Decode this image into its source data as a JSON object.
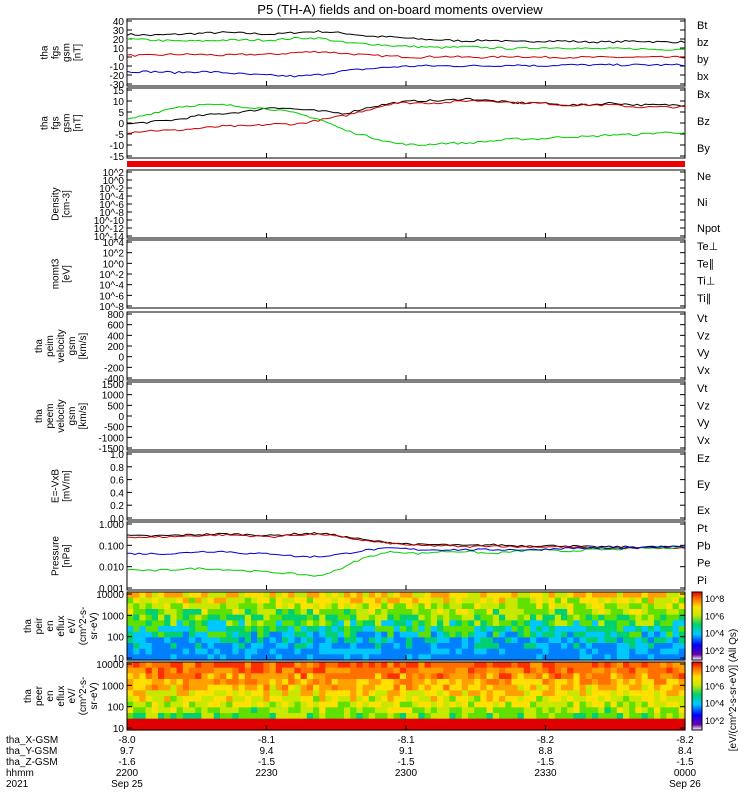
{
  "title": "P5 (TH-A) fields and on-board moments overview",
  "chart_data": [
    {
      "type": "line",
      "panel": "fgs_btotal",
      "ylabel": [
        "tha",
        "fgs",
        "gsm",
        "[nT]"
      ],
      "yticks": [
        40,
        30,
        20,
        10,
        0,
        -10,
        -20,
        -30
      ],
      "ylim": [
        -30,
        40
      ],
      "legend": [
        {
          "label": "Bt",
          "color": "#000000"
        },
        {
          "label": "bz",
          "color": "#cc0000"
        },
        {
          "label": "by",
          "color": "#00cc00"
        },
        {
          "label": "bx",
          "color": "#0000cc"
        }
      ],
      "series": [
        {
          "name": "Bt",
          "color": "#000000",
          "values": [
            24,
            23,
            24,
            25,
            26,
            25,
            24,
            26,
            27,
            25,
            22,
            21,
            19,
            18,
            17,
            18,
            16,
            17,
            17,
            16,
            16,
            17,
            16,
            16
          ]
        },
        {
          "name": "bz",
          "color": "#cc0000",
          "values": [
            2,
            2,
            3,
            3,
            2,
            3,
            3,
            5,
            6,
            4,
            2,
            1,
            0,
            1,
            0,
            0,
            1,
            0,
            0,
            0,
            0,
            0,
            0,
            0
          ]
        },
        {
          "name": "by",
          "color": "#00cc00",
          "values": [
            19,
            18,
            17,
            17,
            18,
            18,
            18,
            20,
            20,
            15,
            14,
            12,
            11,
            10,
            11,
            10,
            9,
            10,
            10,
            9,
            9,
            9,
            8,
            9
          ]
        },
        {
          "name": "bx",
          "color": "#0000cc",
          "values": [
            -15,
            -15,
            -16,
            -15,
            -16,
            -18,
            -19,
            -20,
            -18,
            -14,
            -12,
            -10,
            -9,
            -9,
            -9,
            -9,
            -8,
            -9,
            -8,
            -8,
            -8,
            -8,
            -8,
            -8
          ]
        }
      ]
    },
    {
      "type": "line",
      "panel": "fgs_components",
      "ylabel": [
        "tha",
        "fgs",
        "gsm",
        "[nT]"
      ],
      "yticks": [
        15,
        10,
        5,
        0,
        -5,
        -10,
        -15
      ],
      "ylim": [
        -18,
        15
      ],
      "legend": [
        {
          "label": "Bx",
          "color": "#000000"
        },
        {
          "label": "Bz",
          "color": "#cc0000"
        },
        {
          "label": "By",
          "color": "#00cc00"
        }
      ],
      "series": [
        {
          "name": "Bx",
          "color": "#000000",
          "values": [
            -2,
            -1,
            0,
            2,
            3,
            4,
            6,
            5,
            4,
            3,
            6,
            8,
            9,
            9,
            10,
            9,
            8,
            8,
            7,
            7,
            8,
            7,
            7,
            7
          ]
        },
        {
          "name": "Bz",
          "color": "#cc0000",
          "values": [
            -6,
            -5,
            -5,
            -4,
            -3,
            -3,
            -2,
            -2,
            0,
            2,
            5,
            8,
            8,
            8,
            9,
            9,
            8,
            8,
            7,
            7,
            7,
            6,
            6,
            6
          ]
        },
        {
          "name": "By",
          "color": "#00cc00",
          "values": [
            0,
            3,
            6,
            7,
            7,
            6,
            5,
            3,
            0,
            -5,
            -8,
            -11,
            -12,
            -11,
            -11,
            -10,
            -9,
            -9,
            -8,
            -8,
            -7,
            -7,
            -6,
            -6
          ]
        }
      ]
    },
    {
      "type": "line",
      "panel": "density",
      "ylabel": [
        "Density",
        "[cm-3]"
      ],
      "yticks": [
        "10^2",
        "10^0",
        "10^-2",
        "10^-4",
        "10^-6",
        "10^-8",
        "10^-10",
        "10^-12",
        "10^-14"
      ],
      "legend": [
        {
          "label": "Ne",
          "color": "#cc0000"
        },
        {
          "label": "Ni",
          "color": "#000000"
        },
        {
          "label": "Npot",
          "color": "#0000cc"
        }
      ]
    },
    {
      "type": "line",
      "panel": "temperature",
      "ylabel": [
        "momt3",
        "[eV]"
      ],
      "yticks": [
        "10^4",
        "10^2",
        "10^0",
        "10^-2",
        "10^-4",
        "10^-6",
        "10^-8"
      ],
      "legend": [
        {
          "label": "Te⊥",
          "color": "#cc0000"
        },
        {
          "label": "Te∥",
          "color": "#000000"
        },
        {
          "label": "Ti⊥",
          "color": "#cc00cc"
        },
        {
          "label": "Ti∥",
          "color": "#00cc00"
        }
      ]
    },
    {
      "type": "line",
      "panel": "peim_velocity",
      "ylabel": [
        "tha",
        "peim",
        "velocity",
        "gsm",
        "[km/s]"
      ],
      "yticks": [
        800,
        600,
        400,
        200,
        0,
        -200,
        -400
      ],
      "ylim": [
        -400,
        800
      ],
      "legend": [
        {
          "label": "Vt",
          "color": "#000000"
        },
        {
          "label": "Vz",
          "color": "#cc0000"
        },
        {
          "label": "Vy",
          "color": "#00cc00"
        },
        {
          "label": "Vx",
          "color": "#0000cc"
        }
      ]
    },
    {
      "type": "line",
      "panel": "peem_velocity",
      "ylabel": [
        "tha",
        "peem",
        "velocity",
        "gsm",
        "[km/s]"
      ],
      "yticks": [
        1500,
        1000,
        500,
        0,
        -500,
        -1000,
        -1500
      ],
      "ylim": [
        -1500,
        1500
      ],
      "legend": [
        {
          "label": "Vt",
          "color": "#000000"
        },
        {
          "label": "Vz",
          "color": "#cc0000"
        },
        {
          "label": "Vy",
          "color": "#00cc00"
        },
        {
          "label": "Vx",
          "color": "#0000cc"
        }
      ]
    },
    {
      "type": "line",
      "panel": "efield",
      "ylabel": [
        "E=-VxB",
        "[mV/m]"
      ],
      "yticks": [
        "1.0",
        "0.8",
        "0.6",
        "0.4",
        "0.2",
        "0.0"
      ],
      "ylim": [
        0,
        1
      ],
      "legend": [
        {
          "label": "Ez",
          "color": "#cc0000"
        },
        {
          "label": "Ey",
          "color": "#00cc00"
        },
        {
          "label": "Ex",
          "color": "#0000cc"
        }
      ]
    },
    {
      "type": "line",
      "panel": "pressure",
      "ylabel": [
        "Pressure",
        "[nPa]"
      ],
      "yticks": [
        "1.000",
        "0.100",
        "0.010",
        "0.001"
      ],
      "legend": [
        {
          "label": "Pt",
          "color": "#000000"
        },
        {
          "label": "Pb",
          "color": "#cc0000"
        },
        {
          "label": "Pe",
          "color": "#00cc00"
        },
        {
          "label": "Pi",
          "color": "#0000cc"
        }
      ],
      "series": [
        {
          "name": "Pt",
          "color": "#000000",
          "values": [
            0.25,
            0.24,
            0.26,
            0.28,
            0.3,
            0.28,
            0.25,
            0.3,
            0.32,
            0.22,
            0.15,
            0.12,
            0.1,
            0.1,
            0.09,
            0.1,
            0.09,
            0.09,
            0.09,
            0.08,
            0.08,
            0.08,
            0.08,
            0.08
          ]
        },
        {
          "name": "Pb",
          "color": "#cc0000",
          "values": [
            0.22,
            0.21,
            0.23,
            0.25,
            0.27,
            0.25,
            0.22,
            0.27,
            0.29,
            0.2,
            0.14,
            0.11,
            0.09,
            0.09,
            0.08,
            0.09,
            0.08,
            0.08,
            0.08,
            0.07,
            0.07,
            0.07,
            0.07,
            0.07
          ]
        },
        {
          "name": "Pe",
          "color": "#00cc00",
          "values": [
            0.008,
            0.007,
            0.008,
            0.009,
            0.008,
            0.007,
            0.006,
            0.005,
            0.004,
            0.01,
            0.03,
            0.05,
            0.04,
            0.05,
            0.05,
            0.04,
            0.05,
            0.06,
            0.05,
            0.06,
            0.06,
            0.07,
            0.07,
            0.08
          ]
        },
        {
          "name": "Pi",
          "color": "#0000cc",
          "values": [
            0.04,
            0.04,
            0.04,
            0.05,
            0.05,
            0.04,
            0.04,
            0.03,
            0.03,
            0.04,
            0.06,
            0.07,
            0.06,
            0.06,
            0.06,
            0.06,
            0.06,
            0.06,
            0.07,
            0.07,
            0.07,
            0.07,
            0.08,
            0.08
          ]
        }
      ]
    },
    {
      "type": "heatmap",
      "panel": "peir_en_eflux",
      "ylabel": [
        "tha",
        "peir",
        "en",
        "eflux",
        "eV/",
        "(cm^2-s-",
        "sr-eV)"
      ],
      "yticks": [
        "10000",
        "1000",
        "100",
        "10"
      ],
      "colorbar_label": "[eV/(cm^2-s-sr-eV)] (All Qs)",
      "colorbar_ticks": [
        "10^8",
        "10^6",
        "10^4",
        "10^2"
      ]
    },
    {
      "type": "heatmap",
      "panel": "peer_en_eflux",
      "ylabel": [
        "tha",
        "peer",
        "en",
        "eflux",
        "eV/",
        "(cm^2-s-",
        "sr-eV)"
      ],
      "yticks": [
        "10000",
        "1000",
        "100",
        "10"
      ],
      "colorbar_ticks": [
        "10^8",
        "10^6",
        "10^4",
        "10^2"
      ]
    }
  ],
  "xaxis": {
    "rows": [
      {
        "label": "tha_X-GSM",
        "values": [
          "-8.0",
          "-8.1",
          "-8.1",
          "-8.2",
          "-8.2"
        ]
      },
      {
        "label": "tha_Y-GSM",
        "values": [
          "9.7",
          "9.4",
          "9.1",
          "8.8",
          "8.4"
        ]
      },
      {
        "label": "tha_Z-GSM",
        "values": [
          "-1.6",
          "-1.5",
          "-1.5",
          "-1.5",
          "-1.5"
        ]
      },
      {
        "label": "hhmm",
        "values": [
          "2200",
          "2230",
          "2300",
          "2330",
          "0000"
        ]
      },
      {
        "label": "2021",
        "values": [
          "Sep 25",
          "",
          "",
          "",
          "Sep 26"
        ]
      }
    ]
  }
}
